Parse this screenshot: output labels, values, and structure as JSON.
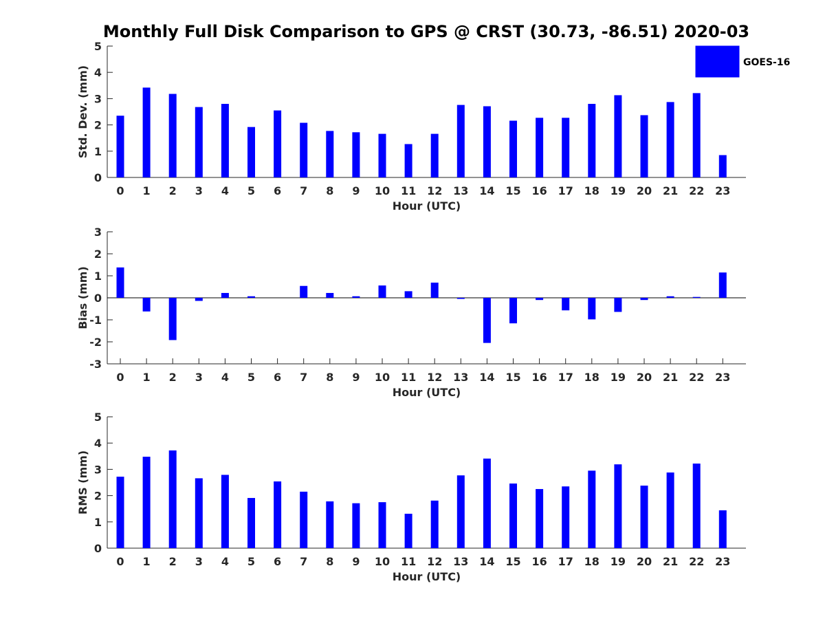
{
  "title": "Monthly Full Disk Comparison to GPS @ CRST (30.73, -86.51) 2020-03",
  "legend": {
    "label": "GOES-16",
    "color": "#0000ff"
  },
  "chart_data": [
    {
      "type": "bar",
      "name": "std-dev",
      "xlabel": "Hour (UTC)",
      "ylabel": "Std. Dev. (mm)",
      "ylim": [
        0,
        5
      ],
      "yticks": [
        "0",
        "1",
        "2",
        "3",
        "4",
        "5"
      ],
      "categories": [
        "0",
        "1",
        "2",
        "3",
        "4",
        "5",
        "6",
        "7",
        "8",
        "9",
        "10",
        "11",
        "12",
        "13",
        "14",
        "15",
        "16",
        "17",
        "18",
        "19",
        "20",
        "21",
        "22",
        "23"
      ],
      "series": [
        {
          "name": "GOES-16",
          "values": [
            2.35,
            3.42,
            3.18,
            2.68,
            2.8,
            1.92,
            2.55,
            2.08,
            1.77,
            1.72,
            1.66,
            1.27,
            1.66,
            2.76,
            2.71,
            2.16,
            2.27,
            2.27,
            2.8,
            3.13,
            2.37,
            2.87,
            3.21,
            0.85
          ]
        }
      ]
    },
    {
      "type": "bar",
      "name": "bias",
      "xlabel": "Hour (UTC)",
      "ylabel": "Bias (mm)",
      "ylim": [
        -3,
        3
      ],
      "yticks": [
        "-3",
        "-2",
        "-1",
        "0",
        "1",
        "2",
        "3"
      ],
      "categories": [
        "0",
        "1",
        "2",
        "3",
        "4",
        "5",
        "6",
        "7",
        "8",
        "9",
        "10",
        "11",
        "12",
        "13",
        "14",
        "15",
        "16",
        "17",
        "18",
        "19",
        "20",
        "21",
        "22",
        "23"
      ],
      "series": [
        {
          "name": "GOES-16",
          "values": [
            1.38,
            -0.62,
            -1.92,
            -0.14,
            0.22,
            0.07,
            0.0,
            0.54,
            0.22,
            0.07,
            0.56,
            0.3,
            0.69,
            -0.05,
            -2.05,
            -1.16,
            -0.1,
            -0.57,
            -0.98,
            -0.64,
            -0.1,
            0.07,
            0.04,
            1.15
          ]
        }
      ]
    },
    {
      "type": "bar",
      "name": "rms",
      "xlabel": "Hour (UTC)",
      "ylabel": "RMS (mm)",
      "ylim": [
        0,
        5
      ],
      "yticks": [
        "0",
        "1",
        "2",
        "3",
        "4",
        "5"
      ],
      "categories": [
        "0",
        "1",
        "2",
        "3",
        "4",
        "5",
        "6",
        "7",
        "8",
        "9",
        "10",
        "11",
        "12",
        "13",
        "14",
        "15",
        "16",
        "17",
        "18",
        "19",
        "20",
        "21",
        "22",
        "23"
      ],
      "series": [
        {
          "name": "GOES-16",
          "values": [
            2.72,
            3.48,
            3.72,
            2.66,
            2.79,
            1.91,
            2.54,
            2.15,
            1.78,
            1.71,
            1.75,
            1.31,
            1.81,
            2.77,
            3.41,
            2.46,
            2.25,
            2.35,
            2.95,
            3.19,
            2.38,
            2.88,
            3.22,
            1.44
          ]
        }
      ]
    }
  ]
}
